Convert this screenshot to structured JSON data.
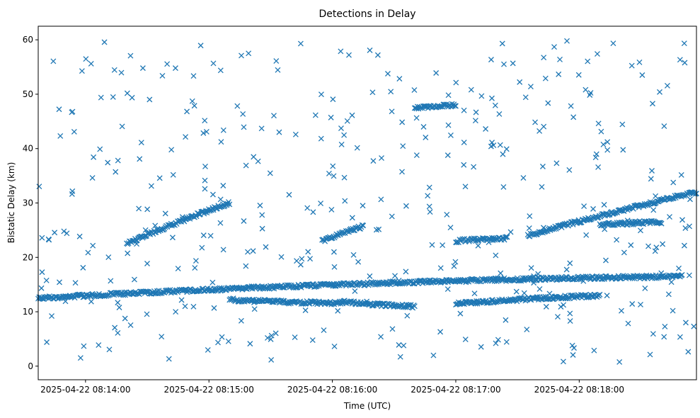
{
  "chart_data": {
    "type": "scatter",
    "title": "Detections in Delay",
    "xlabel": "Time (UTC)",
    "ylabel": "Bistatic Delay (km)",
    "marker": "x",
    "color": "#1f77b4",
    "grid": false,
    "legend": "none",
    "x_range": [
      "2025-04-22 08:13:37",
      "2025-04-22 08:18:57"
    ],
    "ylim": [
      -2.5,
      62.5
    ],
    "x_ticks": [
      "2025-04-22 08:14:00",
      "2025-04-22 08:15:00",
      "2025-04-22 08:16:00",
      "2025-04-22 08:17:00",
      "2025-04-22 08:18:00"
    ],
    "y_ticks": [
      0,
      10,
      20,
      30,
      40,
      50,
      60
    ],
    "x_range_s": [
      0,
      320
    ],
    "tracks": [
      {
        "t_start": "2025-04-22 08:13:37",
        "t_end": "2025-04-22 08:18:50",
        "y_start": 12.5,
        "y_end": 16.5,
        "curvature": 2.5
      },
      {
        "t_start": "2025-04-22 08:14:20",
        "t_end": "2025-04-22 08:15:10",
        "y_start": 22.5,
        "y_end": 30.0,
        "curvature": 0.8
      },
      {
        "t_start": "2025-04-22 08:15:55",
        "t_end": "2025-04-22 08:16:15",
        "y_start": 23.0,
        "y_end": 25.7,
        "curvature": 0.5
      },
      {
        "t_start": "2025-04-22 08:17:00",
        "t_end": "2025-04-22 08:18:10",
        "y_start": 11.5,
        "y_end": 13.0,
        "curvature": 0.3
      },
      {
        "t_start": "2025-04-22 08:17:35",
        "t_end": "2025-04-22 08:18:57",
        "y_start": 24.0,
        "y_end": 32.0,
        "curvature": 0.8
      },
      {
        "t_start": "2025-04-22 08:15:10",
        "t_end": "2025-04-22 08:16:05",
        "y_start": 12.2,
        "y_end": 11.6,
        "curvature": -0.4
      },
      {
        "t_start": "2025-04-22 08:16:05",
        "t_end": "2025-04-22 08:16:40",
        "y_start": 11.8,
        "y_end": 11.0,
        "curvature": -0.3
      },
      {
        "t_start": "2025-04-22 08:17:00",
        "t_end": "2025-04-22 08:17:25",
        "y_start": 23.0,
        "y_end": 23.5,
        "curvature": 0.2
      },
      {
        "t_start": "2025-04-22 08:18:10",
        "t_end": "2025-04-22 08:18:40",
        "y_start": 26.0,
        "y_end": 26.5,
        "curvature": 0.1
      },
      {
        "t_start": "2025-04-22 08:16:40",
        "t_end": "2025-04-22 08:17:00",
        "y_start": 47.5,
        "y_end": 48.0,
        "curvature": 0.2
      }
    ],
    "scattered_points": 420
  }
}
